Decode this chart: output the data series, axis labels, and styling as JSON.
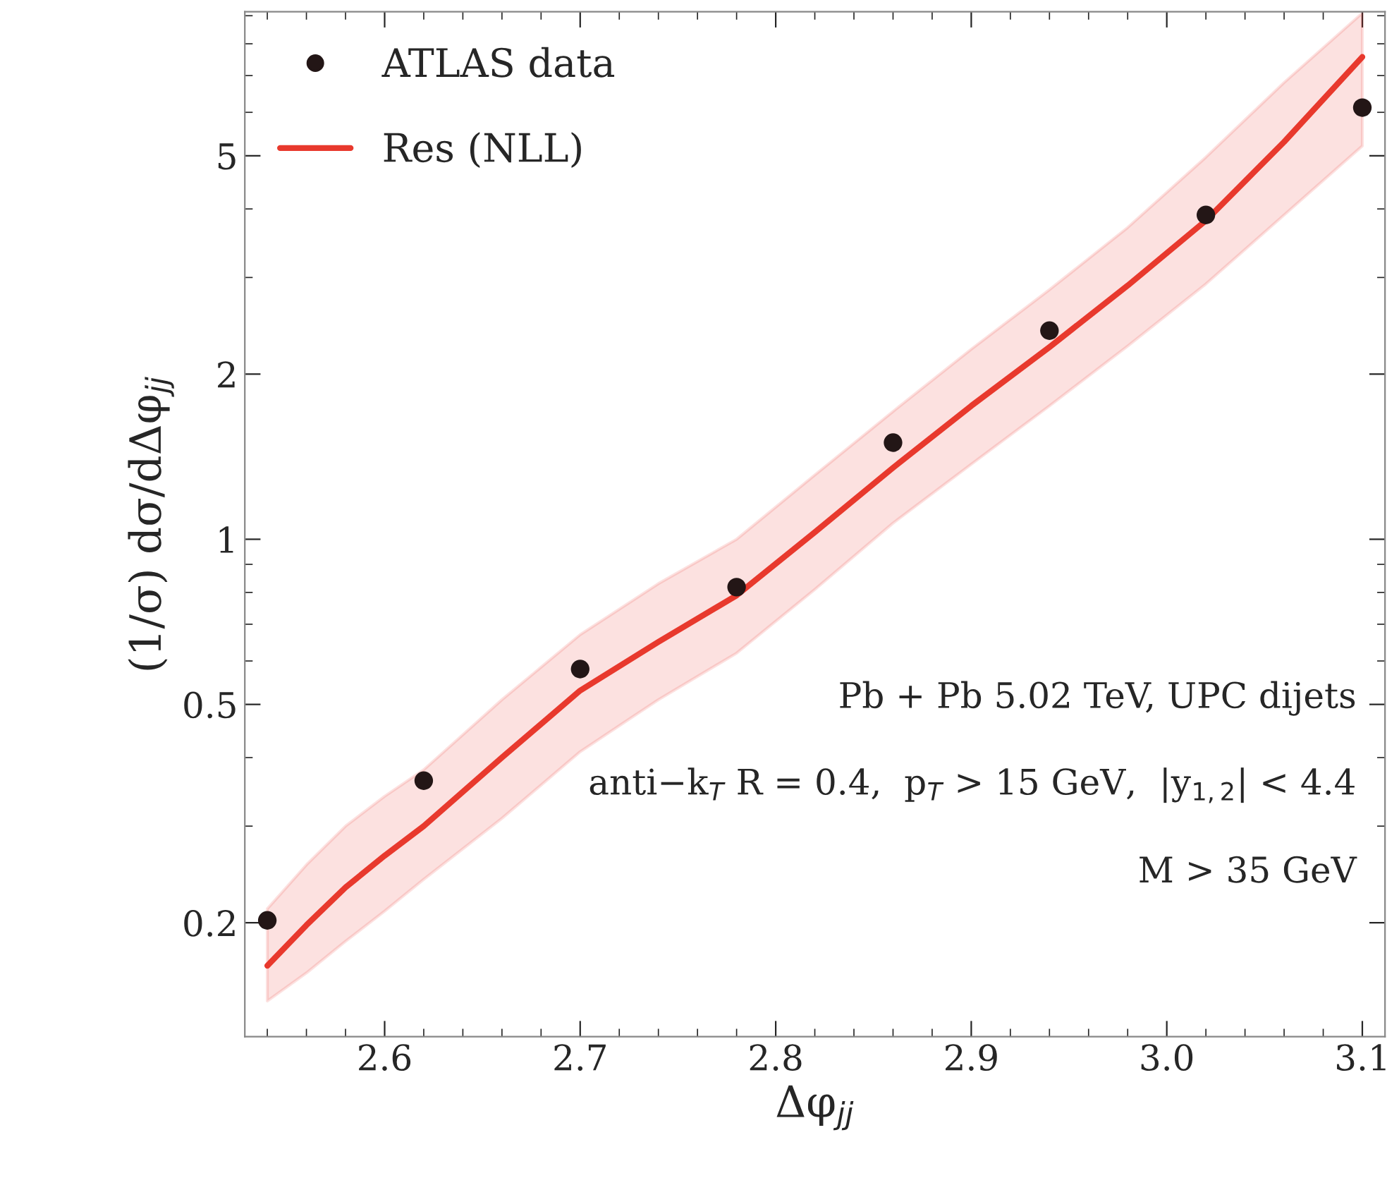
{
  "chart_data": {
    "type": "scatter",
    "xlabel": "Δφ$_{jj}$",
    "ylabel": "(1/σ) dσ/dΔφ$_{jj}$",
    "log": "y",
    "xlim": [
      2.5285,
      3.1116
    ],
    "xticks": [
      2.6,
      2.7,
      2.8,
      2.9,
      {
        "value": 3.0,
        "label": "3.0"
      },
      3.1
    ],
    "ylim": [
      0.124,
      9.15
    ],
    "yticks": [
      0.2,
      0.5,
      1,
      2,
      5
    ],
    "grid": false,
    "legend": "top left",
    "series": [
      {
        "name": "ATLAS data",
        "color": "#231616",
        "marker": "circle",
        "x": [
          2.54,
          2.62,
          2.7,
          2.78,
          2.86,
          2.94,
          3.02,
          3.1
        ],
        "values": [
          0.202,
          0.363,
          0.58,
          0.818,
          1.5,
          2.4,
          3.9,
          6.12
        ]
      },
      {
        "name": "Res (NLL)",
        "type": "line",
        "color": "#e8392d",
        "marker": "none",
        "line_style": "solid",
        "x": [
          2.54,
          2.56,
          2.58,
          2.6,
          2.62,
          2.66,
          2.7,
          2.74,
          2.78,
          2.82,
          2.86,
          2.9,
          2.94,
          2.98,
          3.02,
          3.06,
          3.1
        ],
        "values": [
          0.167,
          0.198,
          0.232,
          0.265,
          0.3,
          0.4,
          0.53,
          0.65,
          0.79,
          1.03,
          1.35,
          1.75,
          2.24,
          2.9,
          3.81,
          5.3,
          7.57
        ],
        "upper": [
          0.212,
          0.255,
          0.3,
          0.34,
          0.38,
          0.51,
          0.67,
          0.83,
          1.0,
          1.31,
          1.71,
          2.22,
          2.85,
          3.7,
          4.97,
          6.8,
          9.1
        ],
        "lower": [
          0.144,
          0.162,
          0.185,
          0.21,
          0.24,
          0.31,
          0.41,
          0.51,
          0.62,
          0.81,
          1.07,
          1.37,
          1.75,
          2.25,
          2.92,
          3.9,
          5.21
        ]
      }
    ],
    "annotations": [
      "Pb + Pb 5.02 TeV, UPC dijets",
      "anti−k$_{T}$ R = 0.4,  p$_{T}$ > 15 GeV,  |y$_{1,2}$| < 4.4",
      "M > 35 GeV"
    ]
  }
}
